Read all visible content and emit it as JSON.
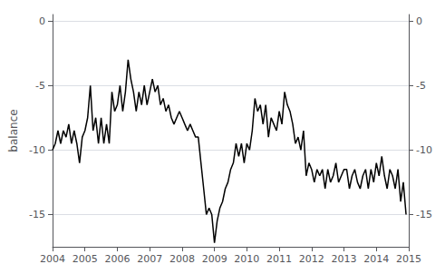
{
  "chart_data": {
    "type": "line",
    "ylabel": "balance",
    "color": "#000000",
    "grid": true,
    "xlim": [
      2004.0,
      2015.0
    ],
    "xticks": [
      2004,
      2005,
      2006,
      2007,
      2008,
      2009,
      2010,
      2011,
      2012,
      2013,
      2014,
      2015
    ],
    "ylim": [
      -17.5,
      0.5
    ],
    "yticks": [
      0,
      -5,
      -10,
      -15
    ],
    "y2lim": [
      -17.5,
      0.5
    ],
    "y2ticks": [
      0,
      -5,
      -10,
      -15
    ],
    "x": [
      2004.0,
      2004.083,
      2004.167,
      2004.25,
      2004.333,
      2004.417,
      2004.5,
      2004.583,
      2004.667,
      2004.75,
      2004.833,
      2004.917,
      2005.0,
      2005.083,
      2005.167,
      2005.25,
      2005.333,
      2005.417,
      2005.5,
      2005.583,
      2005.667,
      2005.75,
      2005.833,
      2005.917,
      2006.0,
      2006.083,
      2006.167,
      2006.25,
      2006.333,
      2006.417,
      2006.5,
      2006.583,
      2006.667,
      2006.75,
      2006.833,
      2006.917,
      2007.0,
      2007.083,
      2007.167,
      2007.25,
      2007.333,
      2007.417,
      2007.5,
      2007.583,
      2007.667,
      2007.75,
      2007.833,
      2007.917,
      2008.0,
      2008.083,
      2008.167,
      2008.25,
      2008.333,
      2008.417,
      2008.5,
      2008.583,
      2008.667,
      2008.75,
      2008.833,
      2008.917,
      2009.0,
      2009.083,
      2009.167,
      2009.25,
      2009.333,
      2009.417,
      2009.5,
      2009.583,
      2009.667,
      2009.75,
      2009.833,
      2009.917,
      2010.0,
      2010.083,
      2010.167,
      2010.25,
      2010.333,
      2010.417,
      2010.5,
      2010.583,
      2010.667,
      2010.75,
      2010.833,
      2010.917,
      2011.0,
      2011.083,
      2011.167,
      2011.25,
      2011.333,
      2011.417,
      2011.5,
      2011.583,
      2011.667,
      2011.75,
      2011.833,
      2011.917,
      2012.0,
      2012.083,
      2012.167,
      2012.25,
      2012.333,
      2012.417,
      2012.5,
      2012.583,
      2012.667,
      2012.75,
      2012.833,
      2012.917,
      2013.0,
      2013.083,
      2013.167,
      2013.25,
      2013.333,
      2013.417,
      2013.5,
      2013.583,
      2013.667,
      2013.75,
      2013.833,
      2013.917,
      2014.0,
      2014.083,
      2014.167,
      2014.25,
      2014.333,
      2014.417,
      2014.5,
      2014.583,
      2014.667,
      2014.75,
      2014.833,
      2014.917
    ],
    "values": [
      -10.0,
      -9.5,
      -8.5,
      -9.5,
      -8.5,
      -9.0,
      -8.0,
      -9.5,
      -8.5,
      -9.5,
      -11.0,
      -9.0,
      -8.5,
      -7.5,
      -5.0,
      -8.5,
      -7.5,
      -9.5,
      -7.5,
      -9.5,
      -8.0,
      -9.5,
      -5.5,
      -7.0,
      -6.5,
      -5.0,
      -7.0,
      -5.5,
      -3.0,
      -4.5,
      -5.5,
      -7.0,
      -5.5,
      -6.5,
      -5.0,
      -6.5,
      -5.5,
      -4.5,
      -5.5,
      -5.0,
      -6.5,
      -6.0,
      -7.0,
      -6.5,
      -7.5,
      -8.0,
      -7.5,
      -7.0,
      -7.5,
      -8.0,
      -8.5,
      -8.0,
      -8.5,
      -9.0,
      -9.0,
      -11.0,
      -13.0,
      -15.0,
      -14.5,
      -15.0,
      -17.2,
      -15.5,
      -14.5,
      -14.0,
      -13.0,
      -12.5,
      -11.5,
      -11.0,
      -9.5,
      -10.5,
      -9.5,
      -11.0,
      -9.5,
      -10.0,
      -8.5,
      -6.0,
      -7.0,
      -6.5,
      -8.0,
      -6.5,
      -9.0,
      -7.5,
      -8.0,
      -8.5,
      -7.0,
      -8.0,
      -5.5,
      -6.5,
      -7.0,
      -8.0,
      -9.5,
      -9.0,
      -10.0,
      -8.5,
      -12.0,
      -11.0,
      -11.5,
      -12.5,
      -11.5,
      -12.0,
      -11.5,
      -13.0,
      -11.5,
      -12.5,
      -12.0,
      -11.0,
      -12.5,
      -12.0,
      -11.5,
      -11.5,
      -13.0,
      -12.0,
      -11.5,
      -12.5,
      -13.0,
      -12.0,
      -11.5,
      -13.0,
      -11.5,
      -12.5,
      -11.0,
      -12.0,
      -10.5,
      -12.0,
      -13.0,
      -11.5,
      -12.0,
      -13.0,
      -11.5,
      -14.0,
      -12.5,
      -15.0
    ]
  }
}
